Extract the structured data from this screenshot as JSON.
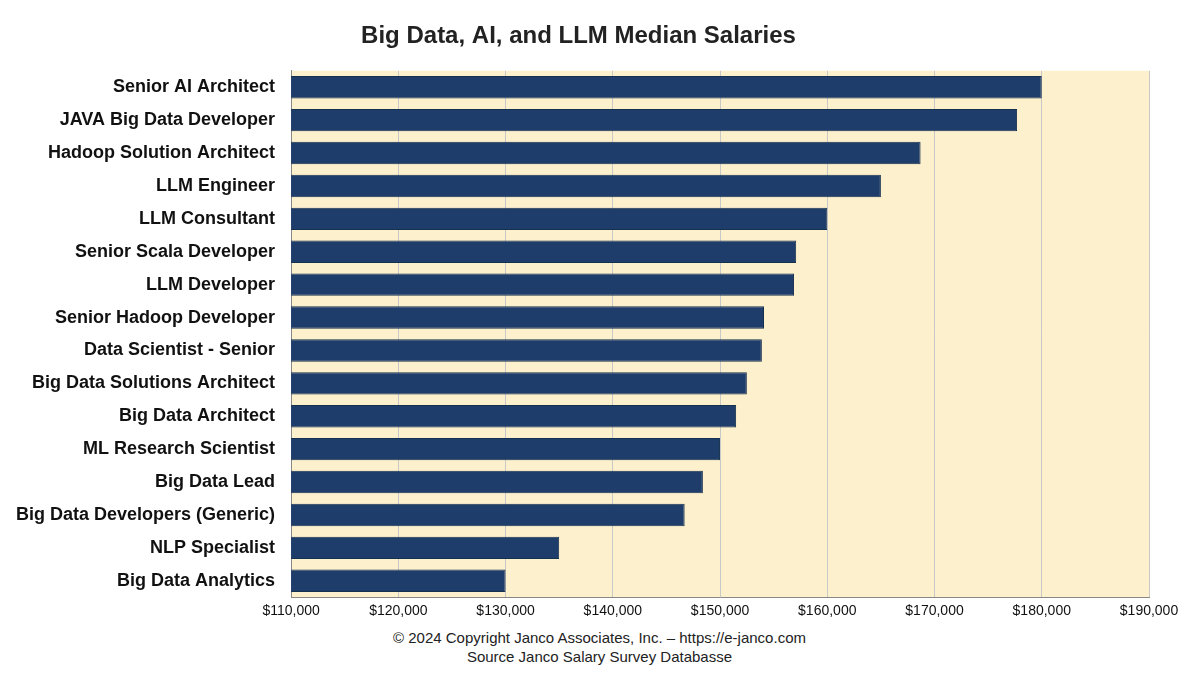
{
  "chart_data": {
    "type": "bar",
    "title": "Big Data, AI, and LLM Median Salaries",
    "orientation": "horizontal",
    "categories": [
      "Senior AI Architect",
      "JAVA Big Data Developer",
      "Hadoop Solution Architect",
      "LLM Engineer",
      "LLM Consultant",
      "Senior Scala Developer",
      "LLM Developer",
      "Senior Hadoop Developer",
      "Data Scientist - Senior",
      "Big Data Solutions Architect",
      "Big Data Architect",
      "ML Research Scientist",
      "Big Data Lead",
      "Big Data Developers (Generic)",
      "NLP Specialist",
      "Big Data Analytics"
    ],
    "values": [
      180000,
      177700,
      168700,
      165000,
      160000,
      157100,
      156900,
      154100,
      153900,
      152500,
      151500,
      150000,
      148400,
      146700,
      135000,
      130000
    ],
    "color": "#1f3d6b",
    "xlim": [
      110000,
      190000
    ],
    "xticks": [
      {
        "value": 110000,
        "label": "$110,000"
      },
      {
        "value": 120000,
        "label": "$120,000"
      },
      {
        "value": 130000,
        "label": "$130,000"
      },
      {
        "value": 140000,
        "label": "$140,000"
      },
      {
        "value": 150000,
        "label": "$150,000"
      },
      {
        "value": 160000,
        "label": "$160,000"
      },
      {
        "value": 170000,
        "label": "$170,000"
      },
      {
        "value": 180000,
        "label": "$180,000"
      },
      {
        "value": 190000,
        "label": "$190,000"
      }
    ],
    "grid": true,
    "annotations": [
      "© 2024 Copyright Janco Associates, Inc. – https://e-janco.com",
      "Source Janco Salary Survey Databasse"
    ]
  }
}
